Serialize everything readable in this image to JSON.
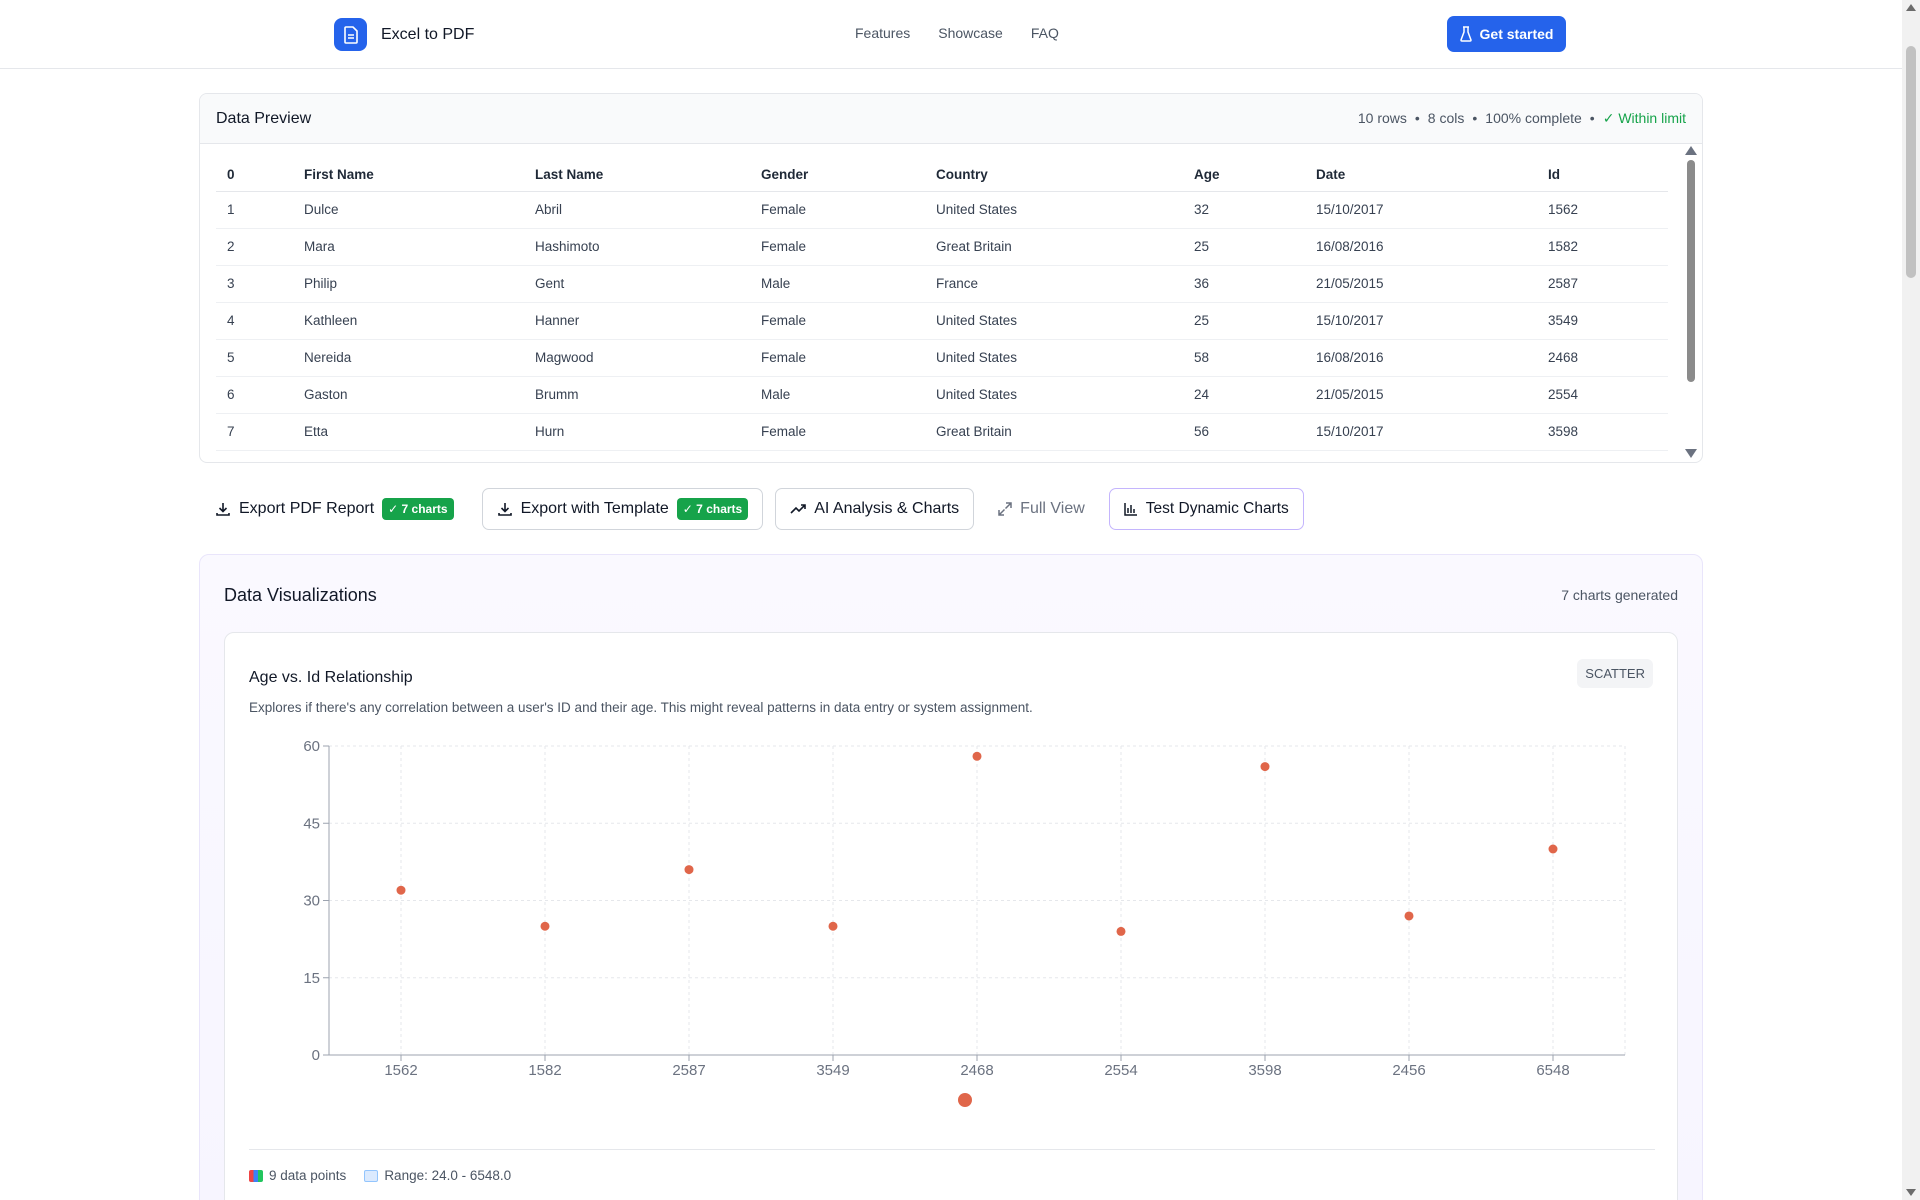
{
  "header": {
    "app_name": "Excel to PDF",
    "nav": [
      "Features",
      "Showcase",
      "FAQ"
    ],
    "cta": "Get started"
  },
  "preview": {
    "title": "Data Preview",
    "meta": {
      "rows": "10 rows",
      "cols": "8 cols",
      "complete": "100% complete",
      "limit": "✓ Within limit"
    },
    "columns": [
      "0",
      "First Name",
      "Last Name",
      "Gender",
      "Country",
      "Age",
      "Date",
      "Id"
    ],
    "rows": [
      [
        "1",
        "Dulce",
        "Abril",
        "Female",
        "United States",
        "32",
        "15/10/2017",
        "1562"
      ],
      [
        "2",
        "Mara",
        "Hashimoto",
        "Female",
        "Great Britain",
        "25",
        "16/08/2016",
        "1582"
      ],
      [
        "3",
        "Philip",
        "Gent",
        "Male",
        "France",
        "36",
        "21/05/2015",
        "2587"
      ],
      [
        "4",
        "Kathleen",
        "Hanner",
        "Female",
        "United States",
        "25",
        "15/10/2017",
        "3549"
      ],
      [
        "5",
        "Nereida",
        "Magwood",
        "Female",
        "United States",
        "58",
        "16/08/2016",
        "2468"
      ],
      [
        "6",
        "Gaston",
        "Brumm",
        "Male",
        "United States",
        "24",
        "21/05/2015",
        "2554"
      ],
      [
        "7",
        "Etta",
        "Hurn",
        "Female",
        "Great Britain",
        "56",
        "15/10/2017",
        "3598"
      ]
    ]
  },
  "actions": {
    "export_pdf": "Export PDF Report",
    "export_pdf_badge": "✓ 7 charts",
    "export_template": "Export with Template",
    "export_template_badge": "✓ 7 charts",
    "ai_analysis": "AI Analysis & Charts",
    "full_view": "Full View",
    "test_dynamic": "Test Dynamic Charts"
  },
  "visualizations": {
    "title": "Data Visualizations",
    "count": "7 charts generated",
    "chart": {
      "title": "Age vs. Id Relationship",
      "type_label": "SCATTER",
      "description": "Explores if there's any correlation between a user's ID and their age. This might reveal patterns in data entry or system assignment.",
      "points_label": "9 data points",
      "range_label": "Range: 24.0 - 6548.0"
    }
  },
  "chart_data": {
    "type": "scatter",
    "categories": [
      "1562",
      "1582",
      "2587",
      "3549",
      "2468",
      "2554",
      "3598",
      "2456",
      "6548"
    ],
    "values": [
      32,
      25,
      36,
      25,
      58,
      24,
      56,
      27,
      40
    ],
    "ylim": [
      0,
      60
    ],
    "yticks": [
      0,
      15,
      30,
      45,
      60
    ],
    "grid": true,
    "color": "#e0664a"
  },
  "colors": {
    "primary": "#2563eb",
    "success": "#16a34a",
    "point": "#e0664a"
  }
}
